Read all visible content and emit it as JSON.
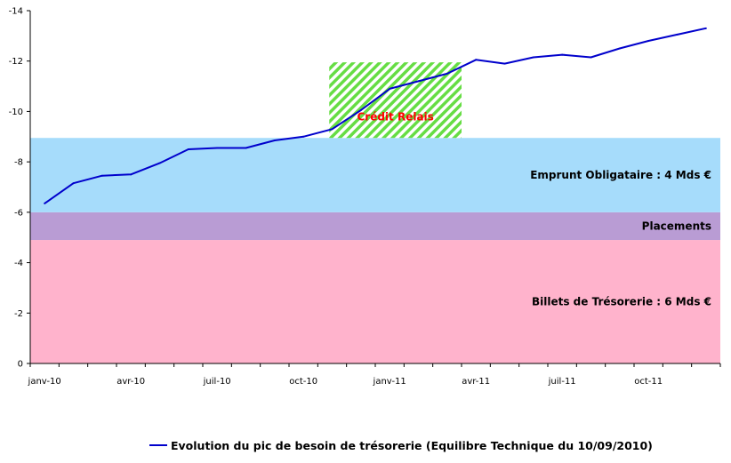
{
  "chart_data": {
    "type": "line",
    "title": "",
    "xlabel": "",
    "ylabel": "",
    "ylim": [
      0,
      -14
    ],
    "y_ticks": [
      "-14",
      "-12",
      "-10",
      "-8",
      "-6",
      "-4",
      "-2",
      "0"
    ],
    "x_ticks": [
      "janv-10",
      "avr-10",
      "juil-10",
      "oct-10",
      "janv-11",
      "avr-11",
      "juil-11",
      "oct-11"
    ],
    "grid": false,
    "legend_position": "bottom",
    "bands": [
      {
        "label": "Billets de Trésorerie : 6 Mds €",
        "from": 0,
        "to": -4.9,
        "color": "#ffb3cc"
      },
      {
        "label": "Placements",
        "from": -4.9,
        "to": -6,
        "color": "#b99cd4"
      },
      {
        "label": "Emprunt Obligataire : 4 Mds €",
        "from": -6,
        "to": -8.95,
        "color": "#a6dcfb"
      }
    ],
    "credit_relais": {
      "label": "Crédit Relais",
      "x_from": 10.4,
      "x_to": 15.0,
      "y_from": -8.95,
      "y_to": -11.95,
      "color": "#66dd44",
      "label_color": "#ff0000"
    },
    "series": [
      {
        "name": "Evolution du pic de besoin de trésorerie (Equilibre Technique du 10/09/2010)",
        "color": "#0000cc",
        "x": [
          0.5,
          1.5,
          2.5,
          3.5,
          4.5,
          5.5,
          6.5,
          7.5,
          8.5,
          9.5,
          10.5,
          11.5,
          12.5,
          13.5,
          14.5,
          15.5,
          16.5,
          17.5,
          18.5,
          19.5,
          20.5,
          21.5,
          22.5,
          23.5
        ],
        "values": [
          -6.35,
          -7.15,
          -7.45,
          -7.5,
          -7.95,
          -8.5,
          -8.55,
          -8.55,
          -8.85,
          -9.0,
          -9.3,
          -10.05,
          -10.9,
          -11.2,
          -11.5,
          -12.05,
          -11.9,
          -12.15,
          -12.25,
          -12.15,
          -12.5,
          -12.8,
          -13.05,
          -13.3
        ]
      }
    ]
  }
}
